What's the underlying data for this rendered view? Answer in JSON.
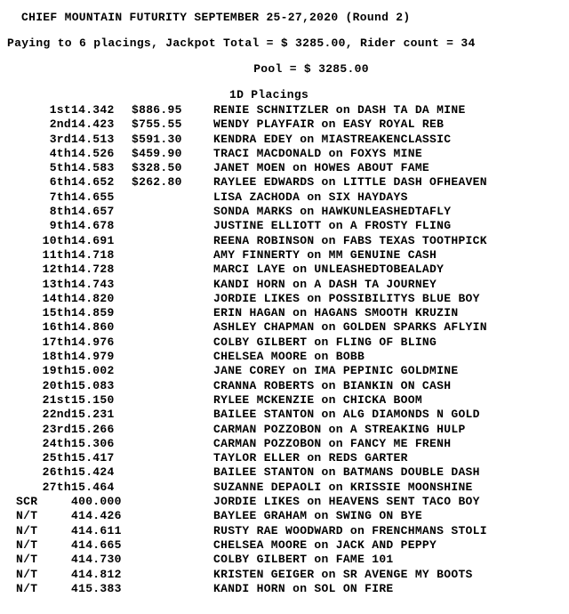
{
  "title": "CHIEF MOUNTAIN FUTURITY SEPTEMBER 25-27,2020 (Round 2)",
  "payline": "Paying to  6 placings, Jackpot Total = $  3285.00, Rider count = 34",
  "pool": "Pool = $ 3285.00",
  "section": "1D Placings",
  "rows": [
    {
      "p": "1st",
      "t": "14.342",
      "z": "$886.95",
      "d": "RENIE SCHNITZLER on DASH TA DA MINE"
    },
    {
      "p": "2nd",
      "t": "14.423",
      "z": "$755.55",
      "d": "WENDY PLAYFAIR on EASY ROYAL REB"
    },
    {
      "p": "3rd",
      "t": "14.513",
      "z": "$591.30",
      "d": "KENDRA EDEY on MIASTREAKENCLASSIC"
    },
    {
      "p": "4th",
      "t": "14.526",
      "z": "$459.90",
      "d": "TRACI MACDONALD on FOXYS MINE"
    },
    {
      "p": "5th",
      "t": "14.583",
      "z": "$328.50",
      "d": "JANET MOEN on HOWES ABOUT FAME"
    },
    {
      "p": "6th",
      "t": "14.652",
      "z": "$262.80",
      "d": "RAYLEE EDWARDS on LITTLE DASH OFHEAVEN"
    },
    {
      "p": "7th",
      "t": "14.655",
      "z": "",
      "d": "LISA ZACHODA on SIX HAYDAYS"
    },
    {
      "p": "8th",
      "t": "14.657",
      "z": "",
      "d": "SONDA MARKS on HAWKUNLEASHEDTAFLY"
    },
    {
      "p": "9th",
      "t": "14.678",
      "z": "",
      "d": "JUSTINE ELLIOTT on A FROSTY FLING"
    },
    {
      "p": "10th",
      "t": "14.691",
      "z": "",
      "d": "REENA ROBINSON on FABS TEXAS TOOTHPICK"
    },
    {
      "p": "11th",
      "t": "14.718",
      "z": "",
      "d": "AMY FINNERTY on MM GENUINE CASH"
    },
    {
      "p": "12th",
      "t": "14.728",
      "z": "",
      "d": "MARCI LAYE on UNLEASHEDTOBEALADY"
    },
    {
      "p": "13th",
      "t": "14.743",
      "z": "",
      "d": "KANDI HORN on A DASH TA JOURNEY"
    },
    {
      "p": "14th",
      "t": "14.820",
      "z": "",
      "d": "JORDIE LIKES on POSSIBILITYS BLUE BOY"
    },
    {
      "p": "15th",
      "t": "14.859",
      "z": "",
      "d": "ERIN HAGAN on HAGANS SMOOTH KRUZIN"
    },
    {
      "p": "16th",
      "t": "14.860",
      "z": "",
      "d": "ASHLEY CHAPMAN on GOLDEN SPARKS AFLYIN"
    },
    {
      "p": "17th",
      "t": "14.976",
      "z": "",
      "d": "COLBY GILBERT on FLING OF BLING"
    },
    {
      "p": "18th",
      "t": "14.979",
      "z": "",
      "d": "CHELSEA MOORE on BOBB"
    },
    {
      "p": "19th",
      "t": "15.002",
      "z": "",
      "d": "JANE COREY on IMA PEPINIC GOLDMINE"
    },
    {
      "p": "20th",
      "t": "15.083",
      "z": "",
      "d": "CRANNA ROBERTS on BIANKIN ON CASH"
    },
    {
      "p": "21st",
      "t": "15.150",
      "z": "",
      "d": "RYLEE MCKENZIE on CHICKA BOOM"
    },
    {
      "p": "22nd",
      "t": "15.231",
      "z": "",
      "d": "BAILEE STANTON on ALG DIAMONDS N GOLD"
    },
    {
      "p": "23rd",
      "t": "15.266",
      "z": "",
      "d": "CARMAN POZZOBON on A STREAKING HULP"
    },
    {
      "p": "24th",
      "t": "15.306",
      "z": "",
      "d": "CARMAN POZZOBON on FANCY ME FRENH"
    },
    {
      "p": "25th",
      "t": "15.417",
      "z": "",
      "d": "TAYLOR ELLER on REDS GARTER"
    },
    {
      "p": "26th",
      "t": "15.424",
      "z": "",
      "d": "BAILEE STANTON on BATMANS DOUBLE DASH"
    },
    {
      "p": "27th",
      "t": "15.464",
      "z": "",
      "d": "SUZANNE DEPAOLI on KRISSIE MOONSHINE"
    },
    {
      "p": "SCR",
      "t": "400.000",
      "z": "",
      "d": "JORDIE LIKES on HEAVENS SENT TACO BOY"
    },
    {
      "p": "N/T",
      "t": "414.426",
      "z": "",
      "d": "BAYLEE GRAHAM on SWING ON BYE"
    },
    {
      "p": "N/T",
      "t": "414.611",
      "z": "",
      "d": "RUSTY RAE WOODWARD on FRENCHMANS STOLI"
    },
    {
      "p": "N/T",
      "t": "414.665",
      "z": "",
      "d": "CHELSEA MOORE on JACK AND PEPPY"
    },
    {
      "p": "N/T",
      "t": "414.730",
      "z": "",
      "d": "COLBY GILBERT on FAME 101"
    },
    {
      "p": "N/T",
      "t": "414.812",
      "z": "",
      "d": "KRISTEN GEIGER on SR AVENGE MY BOOTS"
    },
    {
      "p": "N/T",
      "t": "415.383",
      "z": "",
      "d": "KANDI HORN on SOL ON FIRE"
    }
  ]
}
